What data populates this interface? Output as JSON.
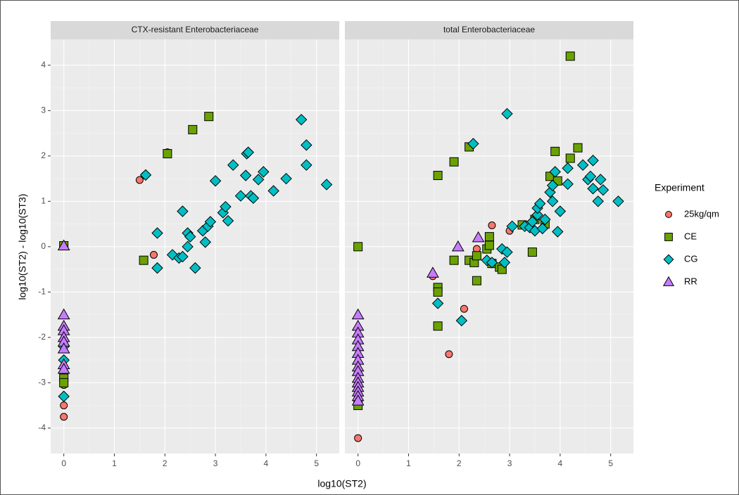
{
  "chart_data": {
    "type": "scatter",
    "x_label": "log10(ST2)",
    "y_label": "log10(ST2) - log10(ST3)",
    "legend_title": "Experiment",
    "legend_position": "right",
    "grid": true,
    "xlim": [
      -0.26,
      5.45
    ],
    "ylim": [
      -4.56,
      4.57
    ],
    "xticks": [
      0,
      1,
      2,
      3,
      4,
      5
    ],
    "yticks": [
      -4,
      -3,
      -2,
      -1,
      0,
      1,
      2,
      3,
      4
    ],
    "series": [
      {
        "name": "25kg/qm",
        "color": "#f8766d",
        "shape": "circle"
      },
      {
        "name": "CE",
        "color": "#6aa300",
        "shape": "square"
      },
      {
        "name": "CG",
        "color": "#00bfc4",
        "shape": "diamond"
      },
      {
        "name": "RR",
        "color": "#c77cff",
        "shape": "triangle"
      }
    ],
    "panels": [
      {
        "title": "CTX-resistant Enterobacteriaceae",
        "data": [
          {
            "x": [
              1.5,
              1.6,
              2.05,
              1.78,
              0,
              0,
              0,
              0,
              0
            ],
            "y": [
              1.47,
              1.57,
              2.08,
              -0.18,
              -3.05,
              -3.5,
              -3.75,
              -2.9,
              0.02
            ]
          },
          {
            "x": [
              2.05,
              2.55,
              2.87,
              1.58,
              0,
              0,
              0
            ],
            "y": [
              2.05,
              2.58,
              2.87,
              -0.3,
              -2.9,
              -3.0,
              0.02
            ]
          },
          {
            "x": [
              1.62,
              1.85,
              1.85,
              2.15,
              2.28,
              2.35,
              2.35,
              2.45,
              2.45,
              2.5,
              2.6,
              2.75,
              2.8,
              2.85,
              2.9,
              3.0,
              3.15,
              3.2,
              3.25,
              3.35,
              3.5,
              3.6,
              3.62,
              3.65,
              3.7,
              3.75,
              3.85,
              3.95,
              4.15,
              4.4,
              4.7,
              4.8,
              4.8,
              5.2,
              0,
              0,
              0
            ],
            "y": [
              1.58,
              0.3,
              -0.47,
              -0.18,
              -0.25,
              -0.22,
              0.78,
              0.3,
              0.0,
              0.22,
              -0.47,
              0.35,
              0.1,
              0.45,
              0.55,
              1.45,
              0.75,
              0.88,
              0.57,
              1.8,
              1.12,
              1.57,
              2.05,
              2.08,
              1.12,
              1.07,
              1.48,
              1.65,
              1.23,
              1.5,
              2.8,
              2.24,
              1.8,
              1.37,
              -2.5,
              -3.3,
              -2.2
            ]
          },
          {
            "x": [
              0,
              0,
              0,
              0,
              0,
              0,
              0,
              0,
              0
            ],
            "y": [
              0.02,
              -1.5,
              -1.75,
              -1.85,
              -2.0,
              -2.1,
              -2.25,
              -2.6,
              -2.7
            ]
          }
        ]
      },
      {
        "title": "total Enterobacteriaceae",
        "data": [
          {
            "x": [
              1.48,
              1.8,
              2.1,
              2.35,
              2.65,
              3.0,
              0
            ],
            "y": [
              -0.65,
              -2.37,
              -1.37,
              -0.05,
              0.47,
              0.35,
              -4.22
            ]
          },
          {
            "x": [
              0,
              0,
              1.58,
              1.58,
              1.58,
              1.58,
              1.9,
              1.9,
              2.2,
              2.2,
              2.3,
              2.35,
              2.35,
              2.55,
              2.6,
              2.6,
              2.65,
              2.8,
              2.85,
              3.25,
              3.45,
              3.5,
              3.7,
              3.8,
              3.9,
              3.95,
              4.2,
              4.2,
              4.35
            ],
            "y": [
              0.0,
              -3.5,
              1.57,
              -0.9,
              -1.0,
              -1.75,
              1.87,
              -0.3,
              2.2,
              -0.3,
              -0.35,
              -0.2,
              -0.75,
              -0.05,
              0.22,
              0.03,
              -0.37,
              -0.45,
              -0.5,
              0.48,
              -0.12,
              0.6,
              0.5,
              1.55,
              2.1,
              1.45,
              1.95,
              4.2,
              2.18
            ]
          },
          {
            "x": [
              1.58,
              2.05,
              2.28,
              2.55,
              2.65,
              2.85,
              2.9,
              2.95,
              2.95,
              3.05,
              3.3,
              3.4,
              3.45,
              3.5,
              3.55,
              3.55,
              3.6,
              3.65,
              3.7,
              3.8,
              3.85,
              3.85,
              3.9,
              3.95,
              4.0,
              4.15,
              4.15,
              4.45,
              4.55,
              4.6,
              4.65,
              4.65,
              4.75,
              4.8,
              4.85,
              5.15
            ],
            "y": [
              -1.25,
              -1.63,
              2.27,
              -0.3,
              -0.35,
              -0.05,
              -0.35,
              2.93,
              -0.12,
              0.45,
              0.45,
              0.42,
              0.55,
              0.35,
              0.7,
              0.85,
              0.95,
              0.4,
              0.6,
              1.2,
              1.0,
              1.35,
              1.65,
              0.33,
              0.78,
              1.38,
              1.73,
              1.8,
              1.48,
              1.55,
              1.9,
              1.28,
              1.0,
              1.48,
              1.25,
              1.0
            ]
          },
          {
            "x": [
              1.48,
              1.98,
              2.38,
              0,
              0,
              0,
              0,
              0,
              0,
              0,
              0,
              0,
              0,
              0,
              0,
              0,
              0,
              0
            ],
            "y": [
              -0.58,
              0.0,
              0.2,
              -1.5,
              -1.75,
              -1.9,
              -2.05,
              -2.2,
              -2.35,
              -2.5,
              -2.65,
              -2.75,
              -2.9,
              -3.0,
              -3.1,
              -3.2,
              -3.3,
              -3.4
            ]
          }
        ]
      }
    ]
  }
}
